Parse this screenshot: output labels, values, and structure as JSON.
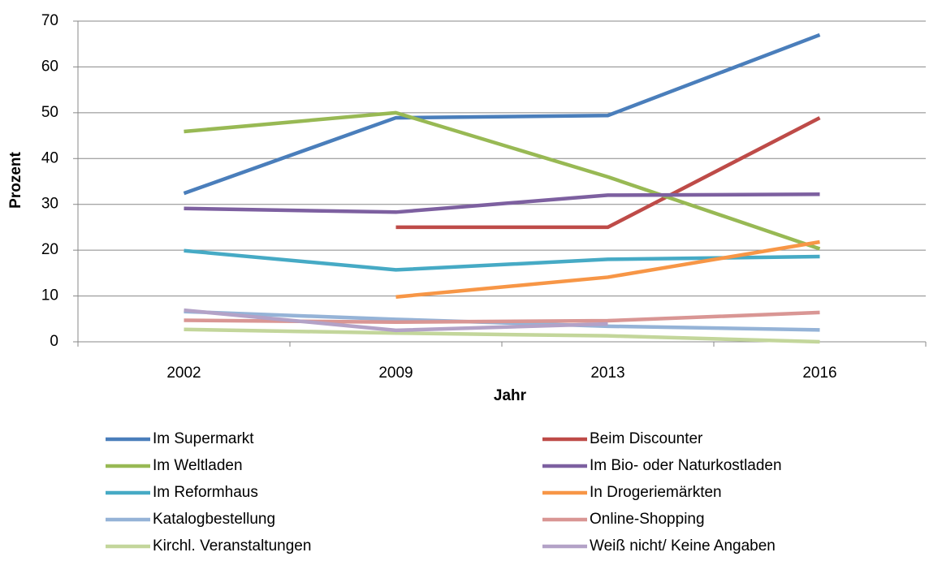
{
  "chart_data": {
    "type": "line",
    "xlabel": "Jahr",
    "ylabel": "Prozent",
    "categories": [
      "2002",
      "2009",
      "2013",
      "2016"
    ],
    "ylim": [
      0,
      70
    ],
    "yticks": [
      0,
      10,
      20,
      30,
      40,
      50,
      60,
      70
    ],
    "grid": true,
    "series": [
      {
        "name": "Im Supermarkt",
        "color": "#4a7ebb",
        "values": [
          32.4,
          48.9,
          49.4,
          67
        ]
      },
      {
        "name": "Beim Discounter",
        "color": "#be4b48",
        "values": [
          null,
          25,
          25,
          48.9
        ]
      },
      {
        "name": "Im Weltladen",
        "color": "#98b954",
        "values": [
          45.9,
          50,
          36,
          20.3
        ]
      },
      {
        "name": "Im Bio- oder Naturkostladen",
        "color": "#7d60a0",
        "values": [
          29.1,
          28.3,
          32,
          32.2
        ]
      },
      {
        "name": "Im Reformhaus",
        "color": "#46aac5",
        "values": [
          19.9,
          15.7,
          18,
          18.6
        ]
      },
      {
        "name": "In Drogeriemärkten",
        "color": "#f79646",
        "values": [
          null,
          9.8,
          14.1,
          21.8
        ]
      },
      {
        "name": "Katalogbestellung",
        "color": "#95b3d7",
        "values": [
          6.6,
          4.9,
          3.4,
          2.6
        ]
      },
      {
        "name": "Online-Shopping",
        "color": "#d99694",
        "values": [
          4.7,
          4.3,
          4.6,
          6.4
        ]
      },
      {
        "name": "Kirchl. Veranstaltungen",
        "color": "#c3d69b",
        "values": [
          2.7,
          1.9,
          1.3,
          0
        ]
      },
      {
        "name": "Weiß nicht/ Keine Angaben",
        "color": "#b3a2c7",
        "values": [
          6.9,
          2.5,
          3.9,
          null
        ]
      }
    ]
  }
}
